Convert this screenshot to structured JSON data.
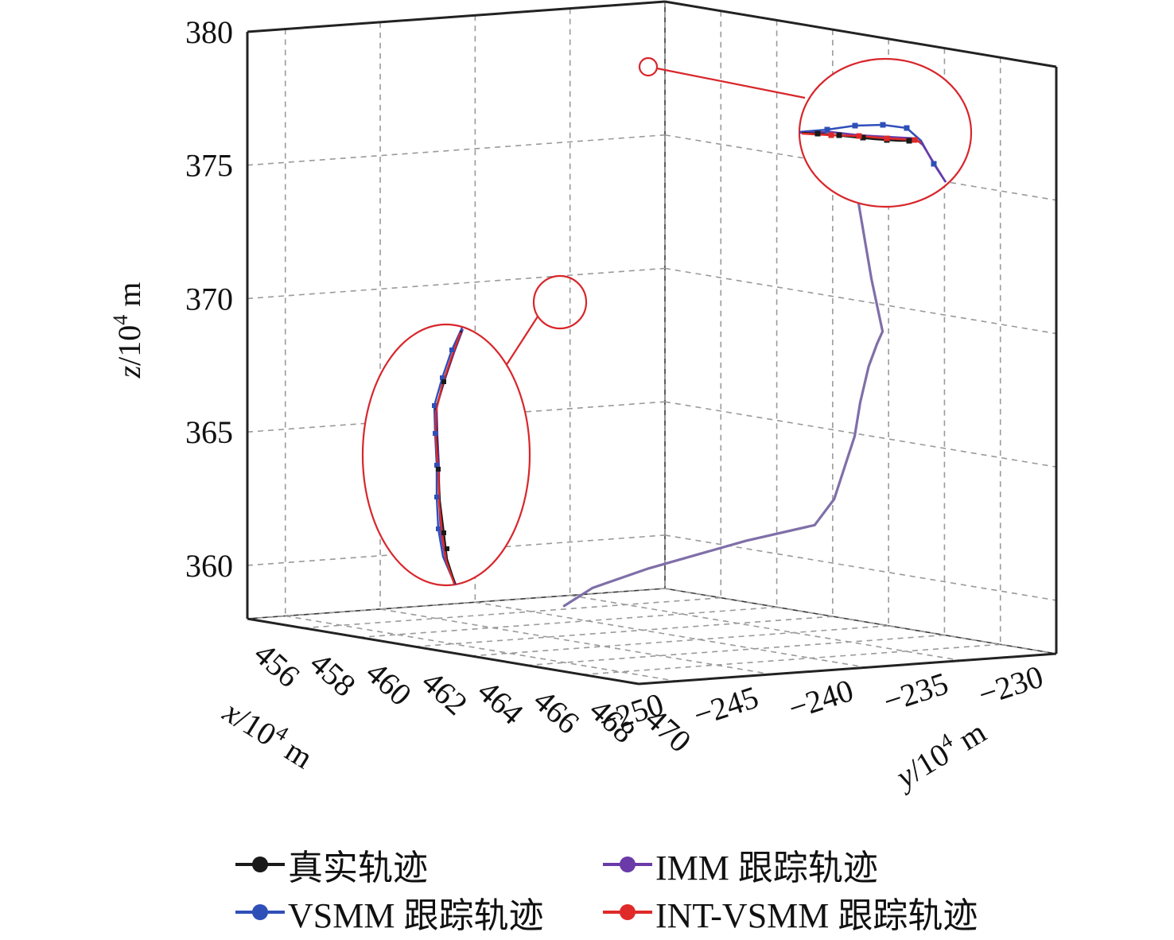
{
  "chart_data": {
    "type": "line",
    "subtype": "3d-trajectory",
    "title": "",
    "axes": {
      "x": {
        "label_var": "x",
        "label_unit": "/10",
        "label_exp": "4",
        "label_tail": " m",
        "range": [
          -230,
          -252
        ],
        "ticks": [
          -230,
          -235,
          -240,
          -245,
          -250
        ],
        "tick_labels": [
          "−230",
          "−235",
          "−240",
          "−245",
          "−250"
        ]
      },
      "y": {
        "label_var": "y",
        "label_unit": "/10",
        "label_exp": "4",
        "label_tail": " m",
        "range": [
          456,
          470
        ],
        "ticks": [
          456,
          458,
          460,
          462,
          464,
          466,
          468,
          470
        ],
        "tick_labels": [
          "456",
          "458",
          "460",
          "462",
          "464",
          "466",
          "468",
          "470"
        ]
      },
      "z": {
        "label_var": "z",
        "label_unit": "/10",
        "label_exp": "4",
        "label_tail": " m",
        "range": [
          358,
          380
        ],
        "ticks": [
          360,
          365,
          370,
          375,
          380
        ],
        "tick_labels": [
          "360",
          "365",
          "370",
          "375",
          "380"
        ]
      }
    },
    "grid": true,
    "series": [
      {
        "name": "真实轨迹",
        "color": "#1a1a1a"
      },
      {
        "name": "IMM 跟踪轨迹",
        "color": "#6a3aa8"
      },
      {
        "name": "VSMM 跟踪轨迹",
        "color": "#2f4fb8"
      },
      {
        "name": "INT-VSMM 跟踪轨迹",
        "color": "#e02a2a"
      }
    ],
    "trajectory": {
      "points": [
        {
          "x": -249.3,
          "y": 465.5,
          "z": 360.0
        },
        {
          "x": -247.8,
          "y": 465.5,
          "z": 360.6
        },
        {
          "x": -245.0,
          "y": 465.6,
          "z": 361.2
        },
        {
          "x": -240.0,
          "y": 465.7,
          "z": 362.0
        },
        {
          "x": -236.4,
          "y": 465.7,
          "z": 362.4
        },
        {
          "x": -236.4,
          "y": 466.4,
          "z": 363.5
        },
        {
          "x": -236.5,
          "y": 467.2,
          "z": 366.0
        },
        {
          "x": -236.5,
          "y": 467.4,
          "z": 367.3
        },
        {
          "x": -236.5,
          "y": 467.7,
          "z": 368.7
        },
        {
          "x": -236.5,
          "y": 468.0,
          "z": 369.6
        },
        {
          "x": -236.5,
          "y": 468.2,
          "z": 370.1
        },
        {
          "x": -236.5,
          "y": 467.8,
          "z": 372.0
        },
        {
          "x": -236.5,
          "y": 467.3,
          "z": 375.0
        },
        {
          "x": -236.5,
          "y": 466.8,
          "z": 378.0
        },
        {
          "x": -236.5,
          "y": 466.6,
          "z": 378.8
        },
        {
          "x": -236.5,
          "y": 466.3,
          "z": 379.0
        }
      ],
      "color": "#7f6fa8"
    },
    "insets": [
      {
        "region": "upper turn (z≈379)"
      },
      {
        "region": "mid segment (z≈370)"
      }
    ],
    "legend_position": "bottom"
  }
}
